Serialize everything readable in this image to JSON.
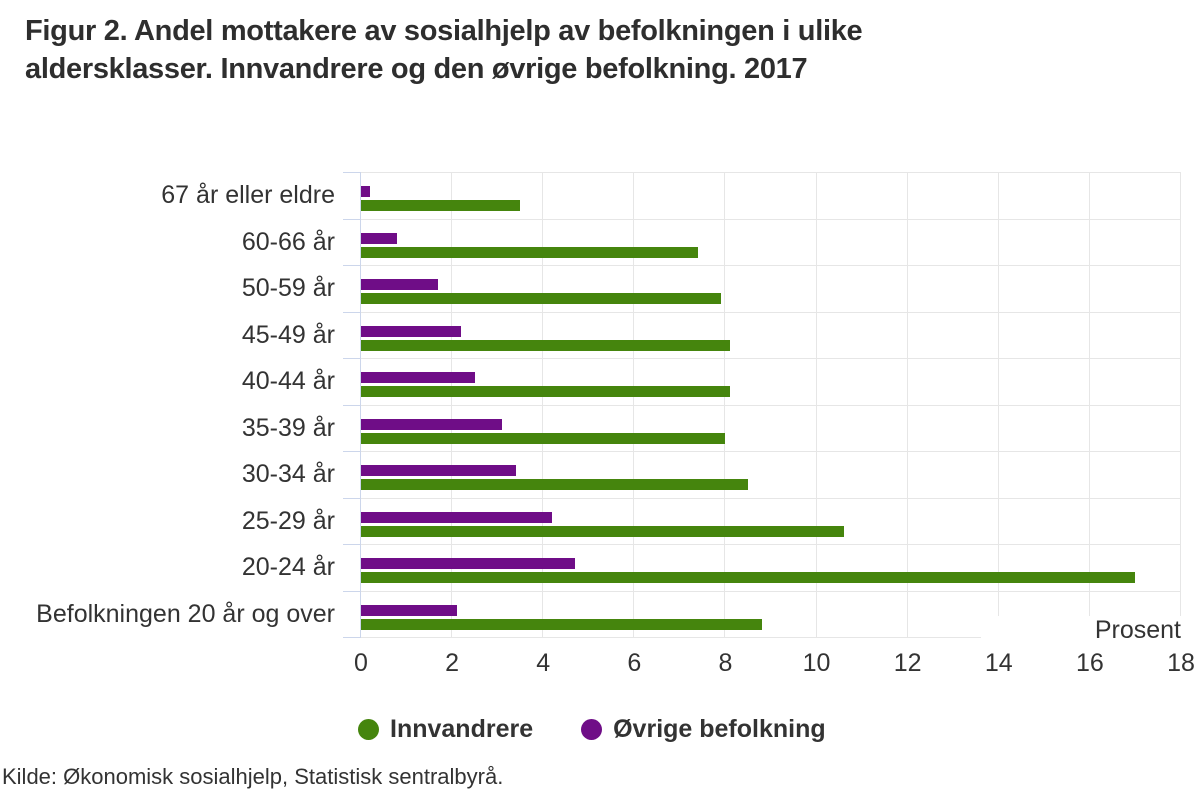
{
  "figure": {
    "title_line1": "Figur 2. Andel mottakere av sosialhjelp av befolkningen i ulike",
    "title_line2": "aldersklasser. Innvandrere og den øvrige befolkning. 2017",
    "source": "Kilde: Økonomisk sosialhjelp, Statistisk sentralbyrå."
  },
  "axis": {
    "unit_label": "Prosent",
    "tick_labels": [
      "0",
      "2",
      "4",
      "6",
      "8",
      "10",
      "12",
      "14",
      "16",
      "18"
    ]
  },
  "legend": {
    "items": [
      {
        "label": "Innvandrere",
        "color": "#45850d"
      },
      {
        "label": "Øvrige befolkning",
        "color": "#6f0d87"
      }
    ]
  },
  "colors": {
    "innvandrere": "#45850d",
    "ovrige_befolkning": "#6f0d87",
    "gridline": "#e6e6e6",
    "axis_line": "#ccd6eb",
    "text": "#333333",
    "title_text": "#2e2e2e",
    "background": "#ffffff"
  },
  "chart_data": {
    "type": "bar",
    "orientation": "horizontal",
    "title": "Figur 2. Andel mottakere av sosialhjelp av befolkningen i ulike aldersklasser. Innvandrere og den øvrige befolkning. 2017",
    "categories": [
      "67 år eller eldre",
      "60-66 år",
      "50-59 år",
      "45-49 år",
      "40-44 år",
      "35-39 år",
      "30-34 år",
      "25-29 år",
      "20-24 år",
      "Befolkningen 20 år og over"
    ],
    "series": [
      {
        "name": "Innvandrere",
        "color": "#45850d",
        "position_in_group": "bottom",
        "values": [
          3.5,
          7.4,
          7.9,
          8.1,
          8.1,
          8.0,
          8.5,
          10.6,
          17.0,
          8.8
        ]
      },
      {
        "name": "Øvrige befolkning",
        "color": "#6f0d87",
        "position_in_group": "top",
        "values": [
          0.2,
          0.8,
          1.7,
          2.2,
          2.5,
          3.1,
          3.4,
          4.2,
          4.7,
          2.1
        ]
      }
    ],
    "xlabel": "Prosent",
    "xlim": [
      0,
      18
    ],
    "xticks": [
      0,
      2,
      4,
      6,
      8,
      10,
      12,
      14,
      16,
      18
    ],
    "grid": true,
    "legend_position": "bottom",
    "source": "Kilde: Økonomisk sosialhjelp, Statistisk sentralbyrå."
  }
}
